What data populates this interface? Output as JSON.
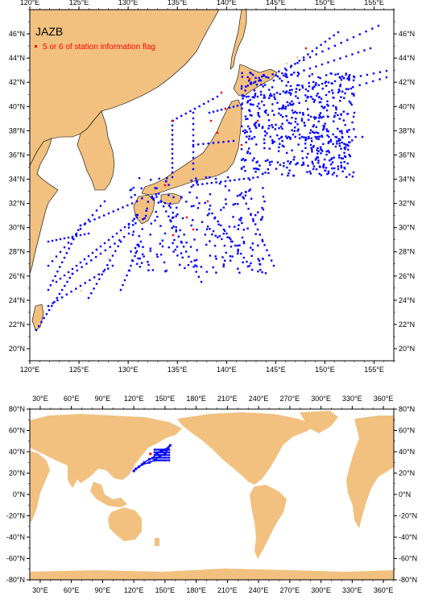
{
  "top_map": {
    "title": "JAZB",
    "legend_label": "5 or 6 of station information flag",
    "legend_color": "#ff0000",
    "station_color": "#0000ff",
    "land_color": "#f2c17f",
    "lon_ticks": [
      "120°E",
      "125°E",
      "130°E",
      "135°E",
      "140°E",
      "145°E",
      "150°E",
      "155°E"
    ],
    "lat_ticks": [
      "20°N",
      "22°N",
      "24°N",
      "26°N",
      "28°N",
      "30°N",
      "32°N",
      "34°N",
      "36°N",
      "38°N",
      "40°N",
      "42°N",
      "44°N",
      "46°N"
    ],
    "lon_range": [
      120,
      157
    ],
    "lat_range": [
      19,
      48
    ]
  },
  "bottom_map": {
    "lon_ticks": [
      "30°E",
      "60°E",
      "90°E",
      "120°E",
      "150°E",
      "180°E",
      "210°E",
      "240°E",
      "270°E",
      "300°E",
      "330°E",
      "360°E"
    ],
    "lat_ticks": [
      "80°N",
      "60°N",
      "40°N",
      "20°N",
      "0°N",
      "-20°N",
      "-40°N",
      "-60°N",
      "-80°N"
    ],
    "lon_range": [
      20,
      370
    ],
    "lat_range": [
      -80,
      80
    ]
  }
}
